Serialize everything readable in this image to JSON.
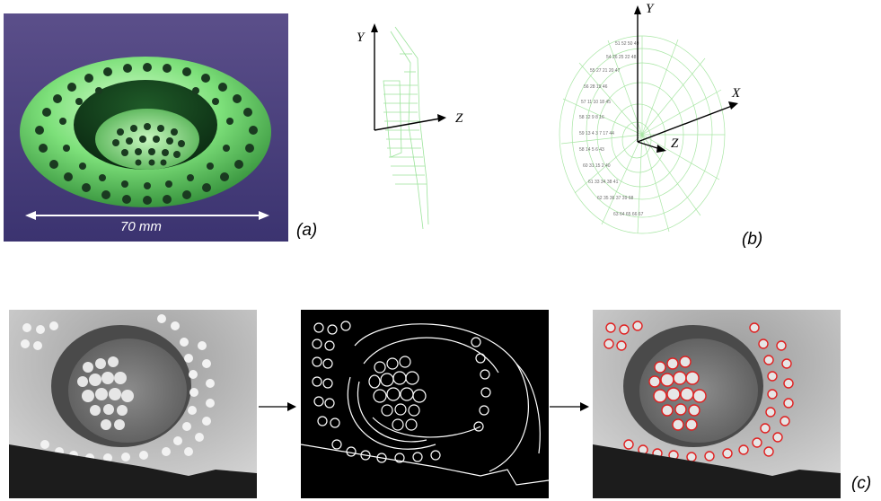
{
  "figure": {
    "labels": {
      "a": "(a)",
      "b": "(b)",
      "c": "(c)"
    },
    "photo": {
      "dimension": "70 mm"
    },
    "side_view": {
      "axis_y": "Y",
      "axis_z": "Z"
    },
    "front_view": {
      "axis_y": "Y",
      "axis_x": "X",
      "axis_z": "Z"
    }
  }
}
